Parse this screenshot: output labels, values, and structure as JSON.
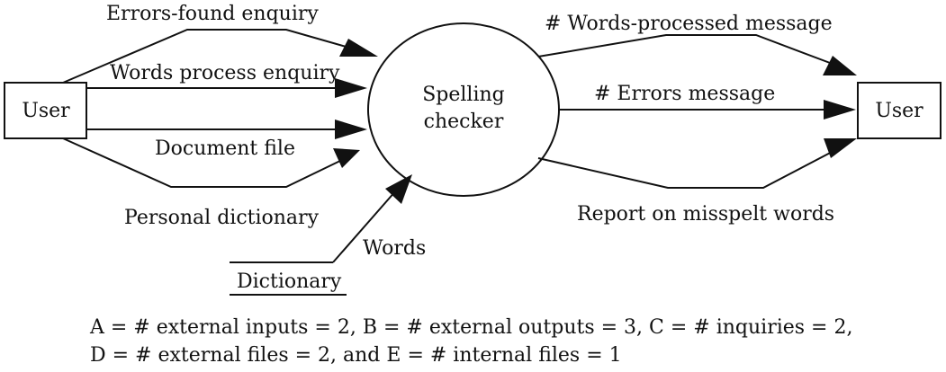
{
  "nodes": {
    "user_left": "User",
    "process_line1": "Spelling",
    "process_line2": "checker",
    "user_right": "User",
    "dictionary": "Dictionary"
  },
  "flows": {
    "errors_found_enquiry": "Errors-found enquiry",
    "words_process_enquiry": "Words process enquiry",
    "document_file": "Document file",
    "personal_dictionary": "Personal dictionary",
    "words": "Words",
    "words_processed_message": "# Words-processed message",
    "errors_message": "# Errors message",
    "report_misspelt_words": "Report on misspelt words"
  },
  "legend": {
    "line1": "A = # external inputs = 2,  B = # external outputs = 3,  C = # inquiries = 2,",
    "line2": "D = # external files = 2, and  E = # internal files = 1"
  }
}
